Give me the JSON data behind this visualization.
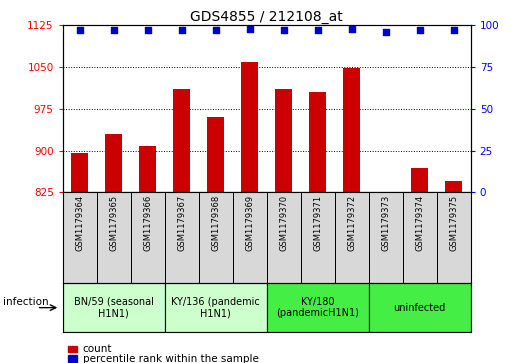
{
  "title": "GDS4855 / 212108_at",
  "samples": [
    "GSM1179364",
    "GSM1179365",
    "GSM1179366",
    "GSM1179367",
    "GSM1179368",
    "GSM1179369",
    "GSM1179370",
    "GSM1179371",
    "GSM1179372",
    "GSM1179373",
    "GSM1179374",
    "GSM1179375"
  ],
  "counts": [
    896,
    930,
    908,
    1010,
    960,
    1060,
    1010,
    1005,
    1048,
    825,
    868,
    845
  ],
  "percentile_ranks": [
    97,
    97,
    97,
    97,
    97,
    98,
    97,
    97,
    98,
    96,
    97,
    97
  ],
  "ylim_left": [
    825,
    1125
  ],
  "ylim_right": [
    0,
    100
  ],
  "yticks_left": [
    825,
    900,
    975,
    1050,
    1125
  ],
  "yticks_right": [
    0,
    25,
    50,
    75,
    100
  ],
  "bar_color": "#cc0000",
  "dot_color": "#0000cc",
  "groups": [
    {
      "label": "BN/59 (seasonal\nH1N1)",
      "start": 0,
      "end": 3,
      "color": "#ccffcc"
    },
    {
      "label": "KY/136 (pandemic\nH1N1)",
      "start": 3,
      "end": 6,
      "color": "#ccffcc"
    },
    {
      "label": "KY/180\n(pandemicH1N1)",
      "start": 6,
      "end": 9,
      "color": "#44ee44"
    },
    {
      "label": "uninfected",
      "start": 9,
      "end": 12,
      "color": "#44ee44"
    }
  ],
  "infection_label": "infection",
  "legend_count_label": "count",
  "legend_pct_label": "percentile rank within the sample",
  "background_color": "#ffffff"
}
